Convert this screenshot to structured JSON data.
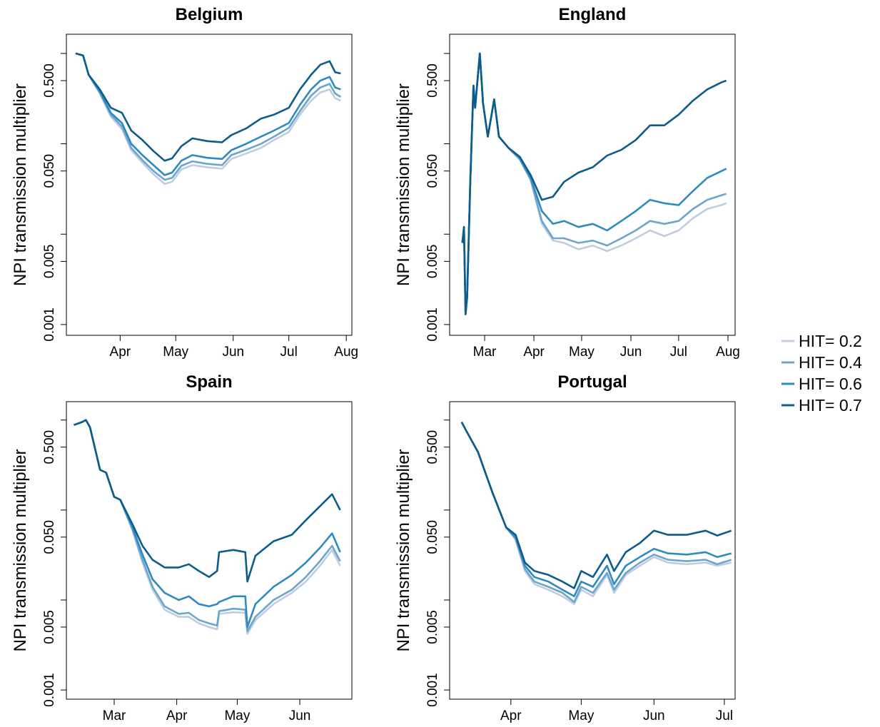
{
  "chart_data": [
    {
      "type": "line",
      "title": "Belgium",
      "ylabel": "NPI transmission multiplier",
      "log_y": true,
      "legend": "right",
      "x": [
        68,
        72,
        75,
        81,
        87,
        93,
        98,
        104,
        110,
        116,
        120,
        125,
        131,
        139,
        147,
        152,
        160,
        168,
        175,
        183,
        189,
        195,
        200,
        205,
        208,
        211
      ],
      "xlim": [
        63,
        217
      ],
      "xticks": [
        {
          "value": 92,
          "label": "Apr"
        },
        {
          "value": 122,
          "label": "May"
        },
        {
          "value": 153,
          "label": "Jun"
        },
        {
          "value": 183,
          "label": "Jul"
        },
        {
          "value": 214,
          "label": "Aug"
        }
      ],
      "ylim": [
        0.00076,
        1.63
      ],
      "yticks": [
        0.001,
        0.005,
        {
          "value": 0.05,
          "label": "0.050"
        },
        {
          "value": 0.5,
          "label": "0.500"
        }
      ],
      "yminorticks": [
        0.01,
        0.1,
        1
      ],
      "series": [
        {
          "name": "HIT= 0.2",
          "color": "#c0cce0",
          "values": [
            1.0,
            0.95,
            0.58,
            0.36,
            0.2,
            0.145,
            0.085,
            0.062,
            0.046,
            0.036,
            0.038,
            0.052,
            0.058,
            0.055,
            0.053,
            0.068,
            0.078,
            0.09,
            0.11,
            0.135,
            0.21,
            0.3,
            0.37,
            0.4,
            0.32,
            0.3
          ]
        },
        {
          "name": "HIT= 0.4",
          "color": "#6ca6cc",
          "values": [
            1.0,
            0.95,
            0.58,
            0.37,
            0.21,
            0.155,
            0.09,
            0.066,
            0.05,
            0.04,
            0.042,
            0.057,
            0.064,
            0.06,
            0.058,
            0.075,
            0.086,
            0.1,
            0.12,
            0.15,
            0.23,
            0.34,
            0.42,
            0.46,
            0.36,
            0.33
          ]
        },
        {
          "name": "HIT= 0.6",
          "color": "#2f8bbf",
          "values": [
            1.0,
            0.95,
            0.58,
            0.38,
            0.22,
            0.17,
            0.1,
            0.075,
            0.058,
            0.045,
            0.048,
            0.065,
            0.075,
            0.07,
            0.068,
            0.085,
            0.1,
            0.12,
            0.14,
            0.17,
            0.27,
            0.4,
            0.5,
            0.55,
            0.42,
            0.4
          ]
        },
        {
          "name": "HIT= 0.7",
          "color": "#0d5c8c",
          "values": [
            1.0,
            0.95,
            0.58,
            0.4,
            0.25,
            0.22,
            0.14,
            0.11,
            0.083,
            0.065,
            0.069,
            0.094,
            0.115,
            0.107,
            0.104,
            0.125,
            0.148,
            0.19,
            0.21,
            0.25,
            0.4,
            0.58,
            0.75,
            0.82,
            0.62,
            0.6
          ]
        }
      ]
    },
    {
      "type": "line",
      "title": "England",
      "ylabel": "NPI transmission multiplier",
      "log_y": true,
      "x": [
        47,
        48,
        49,
        50,
        52,
        54,
        55,
        58,
        60,
        63,
        67,
        70,
        76,
        83,
        90,
        97,
        104,
        111,
        120,
        129,
        138,
        147,
        156,
        165,
        174,
        183,
        192,
        201,
        210,
        213
      ],
      "xlim": [
        39,
        218.5
      ],
      "xticks": [
        {
          "value": 61,
          "label": "Mar"
        },
        {
          "value": 92,
          "label": "Apr"
        },
        {
          "value": 122,
          "label": "May"
        },
        {
          "value": 153,
          "label": "Jun"
        },
        {
          "value": 183,
          "label": "Jul"
        },
        {
          "value": 214,
          "label": "Aug"
        }
      ],
      "ylim": [
        0.00076,
        1.63
      ],
      "yticks": [
        0.001,
        0.005,
        {
          "value": 0.05,
          "label": "0.050"
        },
        {
          "value": 0.5,
          "label": "0.500"
        }
      ],
      "yminorticks": [
        0.01,
        0.1,
        1
      ],
      "series": [
        {
          "color": "#c0cce0",
          "values": [
            0.008,
            0.012,
            0.0013,
            0.002,
            0.04,
            0.44,
            0.25,
            1.0,
            0.28,
            0.12,
            0.31,
            0.12,
            0.09,
            0.067,
            0.04,
            0.013,
            0.0085,
            0.008,
            0.0068,
            0.0075,
            0.0065,
            0.0075,
            0.009,
            0.011,
            0.0095,
            0.011,
            0.015,
            0.019,
            0.021,
            0.022
          ]
        },
        {
          "color": "#6ca6cc",
          "values": [
            0.008,
            0.012,
            0.0013,
            0.002,
            0.04,
            0.44,
            0.25,
            1.0,
            0.28,
            0.12,
            0.31,
            0.12,
            0.09,
            0.068,
            0.04,
            0.014,
            0.009,
            0.009,
            0.008,
            0.0085,
            0.0075,
            0.009,
            0.011,
            0.014,
            0.013,
            0.014,
            0.019,
            0.024,
            0.027,
            0.028
          ]
        },
        {
          "color": "#2f8bbf",
          "values": [
            0.008,
            0.012,
            0.0013,
            0.002,
            0.04,
            0.44,
            0.25,
            1.0,
            0.28,
            0.12,
            0.31,
            0.12,
            0.09,
            0.07,
            0.042,
            0.018,
            0.013,
            0.014,
            0.012,
            0.013,
            0.011,
            0.014,
            0.018,
            0.024,
            0.022,
            0.021,
            0.03,
            0.042,
            0.05,
            0.053
          ]
        },
        {
          "color": "#0d5c8c",
          "values": [
            0.008,
            0.012,
            0.0013,
            0.002,
            0.04,
            0.44,
            0.25,
            1.0,
            0.28,
            0.12,
            0.31,
            0.12,
            0.09,
            0.072,
            0.045,
            0.024,
            0.026,
            0.038,
            0.048,
            0.055,
            0.074,
            0.086,
            0.11,
            0.16,
            0.16,
            0.21,
            0.3,
            0.4,
            0.48,
            0.5
          ]
        }
      ]
    },
    {
      "type": "line",
      "title": "Spain",
      "ylabel": "NPI transmission multiplier",
      "log_y": true,
      "x": [
        41,
        45,
        47,
        49,
        54,
        57,
        61,
        64,
        70,
        75,
        80,
        86,
        93,
        98,
        103,
        108,
        112,
        113,
        120,
        126,
        127,
        131,
        140,
        149,
        156,
        163,
        169,
        173
      ],
      "xlim": [
        37.3,
        178.8
      ],
      "xticks": [
        {
          "value": 61,
          "label": "Mar"
        },
        {
          "value": 92,
          "label": "Apr"
        },
        {
          "value": 122,
          "label": "May"
        },
        {
          "value": 153,
          "label": "Jun"
        }
      ],
      "ylim": [
        0.00079,
        1.6
      ],
      "yticks": [
        0.001,
        0.005,
        {
          "value": 0.05,
          "label": "0.050"
        },
        {
          "value": 0.5,
          "label": "0.500"
        }
      ],
      "yminorticks": [
        0.01,
        0.1,
        1
      ],
      "series": [
        {
          "color": "#c0cce0",
          "values": [
            0.88,
            0.95,
            1.0,
            0.83,
            0.28,
            0.26,
            0.14,
            0.13,
            0.06,
            0.026,
            0.013,
            0.0078,
            0.0065,
            0.0065,
            0.0055,
            0.005,
            0.0047,
            0.007,
            0.0073,
            0.0072,
            0.0042,
            0.006,
            0.009,
            0.012,
            0.016,
            0.024,
            0.036,
            0.024
          ]
        },
        {
          "color": "#6ca6cc",
          "values": [
            0.88,
            0.95,
            1.0,
            0.83,
            0.28,
            0.26,
            0.14,
            0.13,
            0.062,
            0.028,
            0.014,
            0.0085,
            0.007,
            0.0072,
            0.006,
            0.0055,
            0.0052,
            0.0075,
            0.008,
            0.0078,
            0.0045,
            0.0065,
            0.01,
            0.013,
            0.018,
            0.027,
            0.04,
            0.027
          ]
        },
        {
          "color": "#2f8bbf",
          "values": [
            0.88,
            0.95,
            1.0,
            0.83,
            0.28,
            0.26,
            0.14,
            0.13,
            0.065,
            0.032,
            0.017,
            0.012,
            0.01,
            0.011,
            0.009,
            0.0085,
            0.009,
            0.0095,
            0.011,
            0.011,
            0.005,
            0.009,
            0.014,
            0.019,
            0.026,
            0.038,
            0.055,
            0.034
          ]
        },
        {
          "color": "#0d5c8c",
          "values": [
            0.88,
            0.95,
            1.0,
            0.83,
            0.28,
            0.26,
            0.14,
            0.13,
            0.07,
            0.04,
            0.028,
            0.023,
            0.023,
            0.025,
            0.021,
            0.018,
            0.021,
            0.034,
            0.036,
            0.034,
            0.016,
            0.031,
            0.045,
            0.053,
            0.077,
            0.11,
            0.15,
            0.1
          ]
        }
      ]
    },
    {
      "type": "line",
      "title": "Portugal",
      "ylabel": "NPI transmission multiplier",
      "log_y": true,
      "x": [
        71,
        73,
        78,
        84,
        90,
        94,
        98,
        102,
        108,
        114,
        119,
        122,
        127,
        133,
        136,
        141,
        147,
        153,
        159,
        167,
        175,
        180,
        186
      ],
      "xlim": [
        65.9,
        187.6
      ],
      "xticks": [
        {
          "value": 92,
          "label": "Apr"
        },
        {
          "value": 122,
          "label": "May"
        },
        {
          "value": 153,
          "label": "Jun"
        },
        {
          "value": 183,
          "label": "Jul"
        }
      ],
      "ylim": [
        0.00079,
        1.6
      ],
      "yticks": [
        0.001,
        0.005,
        {
          "value": 0.05,
          "label": "0.050"
        },
        {
          "value": 0.5,
          "label": "0.500"
        }
      ],
      "yminorticks": [
        0.01,
        0.1,
        1
      ],
      "series": [
        {
          "color": "#c0cce0",
          "values": [
            0.95,
            0.76,
            0.44,
            0.16,
            0.064,
            0.047,
            0.021,
            0.015,
            0.013,
            0.011,
            0.009,
            0.013,
            0.011,
            0.019,
            0.012,
            0.019,
            0.024,
            0.03,
            0.026,
            0.025,
            0.026,
            0.024,
            0.026
          ]
        },
        {
          "color": "#6ca6cc",
          "values": [
            0.95,
            0.76,
            0.44,
            0.16,
            0.064,
            0.048,
            0.022,
            0.016,
            0.014,
            0.012,
            0.0095,
            0.014,
            0.012,
            0.02,
            0.013,
            0.02,
            0.026,
            0.032,
            0.028,
            0.027,
            0.028,
            0.025,
            0.028
          ]
        },
        {
          "color": "#2f8bbf",
          "values": [
            0.95,
            0.76,
            0.44,
            0.16,
            0.064,
            0.05,
            0.024,
            0.018,
            0.016,
            0.013,
            0.011,
            0.016,
            0.014,
            0.024,
            0.015,
            0.024,
            0.03,
            0.037,
            0.033,
            0.032,
            0.034,
            0.03,
            0.033
          ]
        },
        {
          "color": "#0d5c8c",
          "values": [
            0.95,
            0.76,
            0.44,
            0.16,
            0.064,
            0.053,
            0.026,
            0.021,
            0.019,
            0.016,
            0.0135,
            0.021,
            0.018,
            0.032,
            0.021,
            0.034,
            0.043,
            0.059,
            0.053,
            0.053,
            0.059,
            0.052,
            0.059
          ]
        }
      ]
    }
  ]
}
